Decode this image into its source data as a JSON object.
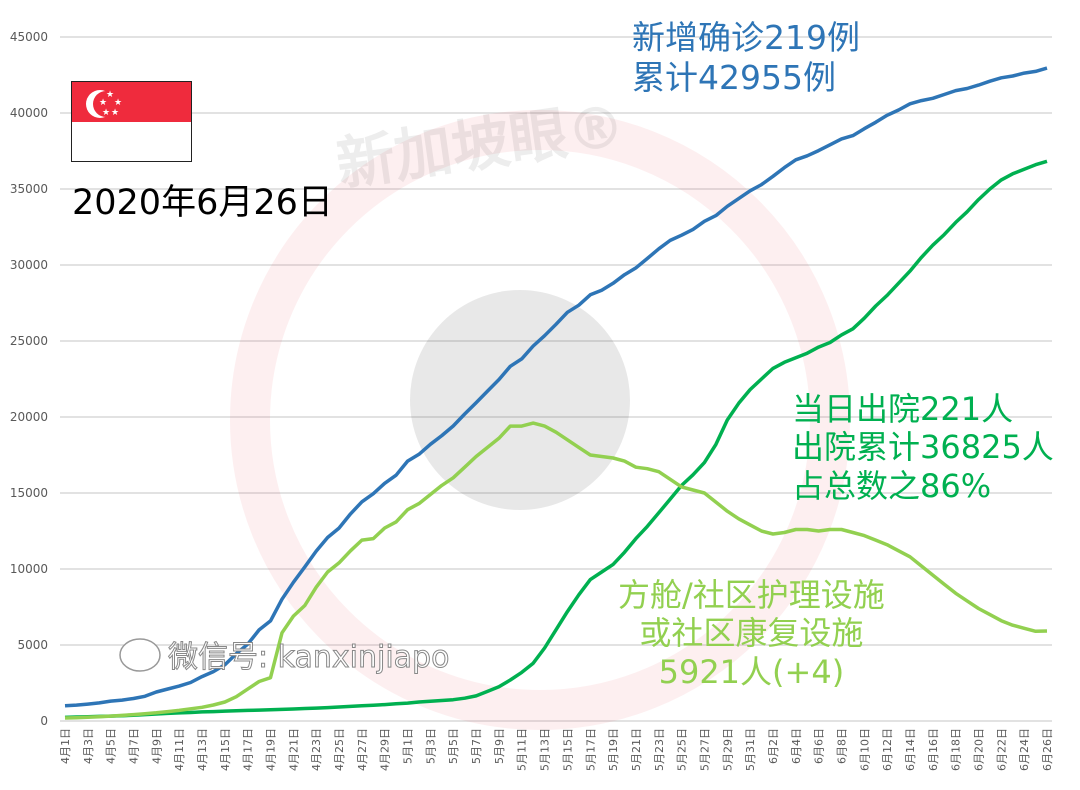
{
  "colors": {
    "total": "#2e75b6",
    "discharged": "#00b050",
    "community": "#92d050",
    "grid": "#d9d9d9",
    "axis_text": "#595959",
    "flag_red": "#ef2b3d",
    "watermark": "#e8383d"
  },
  "date_label": "2020年6月26日",
  "flag": {
    "icon": "singapore-flag-icon"
  },
  "watermark": {
    "text": "新加坡眼®",
    "wechat": "微信号: kanxinjiapo"
  },
  "annotations": {
    "total": [
      "新增确诊219例",
      "累计42955例"
    ],
    "discharged": [
      "当日出院221人",
      "出院累计36825人",
      "占总数之86%"
    ],
    "community": [
      "方舱/社区护理设施",
      "或社区康复设施",
      "5921人(+4)"
    ]
  },
  "chart_data": {
    "type": "line",
    "ylim": [
      0,
      45000
    ],
    "yticks": [
      "0",
      "5000",
      "10000",
      "15000",
      "20000",
      "25000",
      "30000",
      "35000",
      "40000",
      "45000"
    ],
    "grid": true,
    "x": [
      "4月1日",
      "4月2日",
      "4月3日",
      "4月4日",
      "4月5日",
      "4月6日",
      "4月7日",
      "4月8日",
      "4月9日",
      "4月10日",
      "4月11日",
      "4月12日",
      "4月13日",
      "4月14日",
      "4月15日",
      "4月16日",
      "4月17日",
      "4月18日",
      "4月19日",
      "4月20日",
      "4月21日",
      "4月22日",
      "4月23日",
      "4月24日",
      "4月25日",
      "4月26日",
      "4月27日",
      "4月28日",
      "4月29日",
      "4月30日",
      "5月1日",
      "5月2日",
      "5月3日",
      "5月4日",
      "5月5日",
      "5月6日",
      "5月7日",
      "5月8日",
      "5月9日",
      "5月10日",
      "5月11日",
      "5月12日",
      "5月13日",
      "5月14日",
      "5月15日",
      "5月16日",
      "5月17日",
      "5月18日",
      "5月19日",
      "5月20日",
      "5月21日",
      "5月22日",
      "5月23日",
      "5月24日",
      "5月25日",
      "5月26日",
      "5月27日",
      "5月28日",
      "5月29日",
      "5月30日",
      "5月31日",
      "6月1日",
      "6月2日",
      "6月3日",
      "6月4日",
      "6月5日",
      "6月6日",
      "6月7日",
      "6月8日",
      "6月9日",
      "6月10日",
      "6月11日",
      "6月12日",
      "6月13日",
      "6月14日",
      "6月15日",
      "6月16日",
      "6月17日",
      "6月18日",
      "6月19日",
      "6月20日",
      "6月21日",
      "6月22日",
      "6月23日",
      "6月24日",
      "6月25日",
      "6月26日"
    ],
    "xticks": [
      "4月1日",
      "4月3日",
      "4月5日",
      "4月7日",
      "4月9日",
      "4月11日",
      "4月13日",
      "4月15日",
      "4月17日",
      "4月19日",
      "4月21日",
      "4月23日",
      "4月25日",
      "4月27日",
      "4月29日",
      "5月1日",
      "5月3日",
      "5月5日",
      "5月7日",
      "5月9日",
      "5月11日",
      "5月13日",
      "5月15日",
      "5月17日",
      "5月19日",
      "5月21日",
      "5月23日",
      "5月25日",
      "5月27日",
      "5月29日",
      "5月31日",
      "6月2日",
      "6月4日",
      "6月6日",
      "6月8日",
      "6月10日",
      "6月12日",
      "6月14日",
      "6月16日",
      "6月18日",
      "6月20日",
      "6月22日",
      "6月24日",
      "6月26日"
    ],
    "series": [
      {
        "key": "total",
        "values": [
          1000,
          1049,
          1114,
          1189,
          1309,
          1375,
          1481,
          1623,
          1910,
          2108,
          2299,
          2532,
          2918,
          3252,
          3699,
          4427,
          5050,
          5992,
          6588,
          8014,
          9125,
          10141,
          11178,
          12075,
          12693,
          13624,
          14423,
          14951,
          15641,
          16169,
          17101,
          17548,
          18205,
          18778,
          19410,
          20198,
          20939,
          21707,
          22460,
          23336,
          23822,
          24671,
          25346,
          26098,
          26891,
          27356,
          28038,
          28343,
          28794,
          29364,
          29812,
          30426,
          31068,
          31616,
          31960,
          32343,
          32876,
          33249,
          33860,
          34366,
          34884,
          35292,
          35836,
          36405,
          36922,
          37183,
          37527,
          37910,
          38296,
          38514,
          38965,
          39387,
          39850,
          40197,
          40604,
          40818,
          40969,
          41216,
          41473,
          41615,
          41833,
          42095,
          42313,
          42432,
          42623,
          42736,
          42955
        ]
      },
      {
        "key": "discharged",
        "values": [
          240,
          260,
          280,
          300,
          320,
          340,
          380,
          420,
          460,
          500,
          530,
          560,
          600,
          620,
          650,
          680,
          700,
          720,
          740,
          760,
          790,
          820,
          850,
          880,
          920,
          960,
          1000,
          1040,
          1080,
          1130,
          1180,
          1250,
          1300,
          1350,
          1400,
          1500,
          1650,
          1950,
          2250,
          2700,
          3200,
          3800,
          4800,
          6000,
          7200,
          8300,
          9300,
          9800,
          10300,
          11100,
          12000,
          12800,
          13700,
          14600,
          15500,
          16200,
          17000,
          18200,
          19800,
          20900,
          21800,
          22500,
          23200,
          23600,
          23900,
          24200,
          24600,
          24900,
          25400,
          25800,
          26500,
          27300,
          28000,
          28800,
          29600,
          30500,
          31300,
          32000,
          32800,
          33500,
          34300,
          35000,
          35600,
          36000,
          36300,
          36600,
          36825
        ]
      },
      {
        "key": "community",
        "values": [
          200,
          220,
          250,
          280,
          320,
          370,
          420,
          480,
          540,
          620,
          700,
          800,
          900,
          1050,
          1250,
          1600,
          2100,
          2600,
          2850,
          5800,
          6900,
          7600,
          8800,
          9800,
          10400,
          11200,
          11900,
          12000,
          12700,
          13100,
          13900,
          14300,
          14900,
          15500,
          16000,
          16700,
          17400,
          18000,
          18600,
          19400,
          19400,
          19600,
          19400,
          19000,
          18500,
          18000,
          17500,
          17400,
          17300,
          17100,
          16700,
          16600,
          16400,
          15900,
          15400,
          15200,
          15000,
          14400,
          13800,
          13300,
          12900,
          12500,
          12300,
          12400,
          12600,
          12600,
          12500,
          12600,
          12600,
          12400,
          12200,
          11900,
          11600,
          11200,
          10800,
          10200,
          9600,
          9000,
          8400,
          7900,
          7400,
          7000,
          6600,
          6300,
          6100,
          5900,
          5921
        ]
      }
    ]
  }
}
